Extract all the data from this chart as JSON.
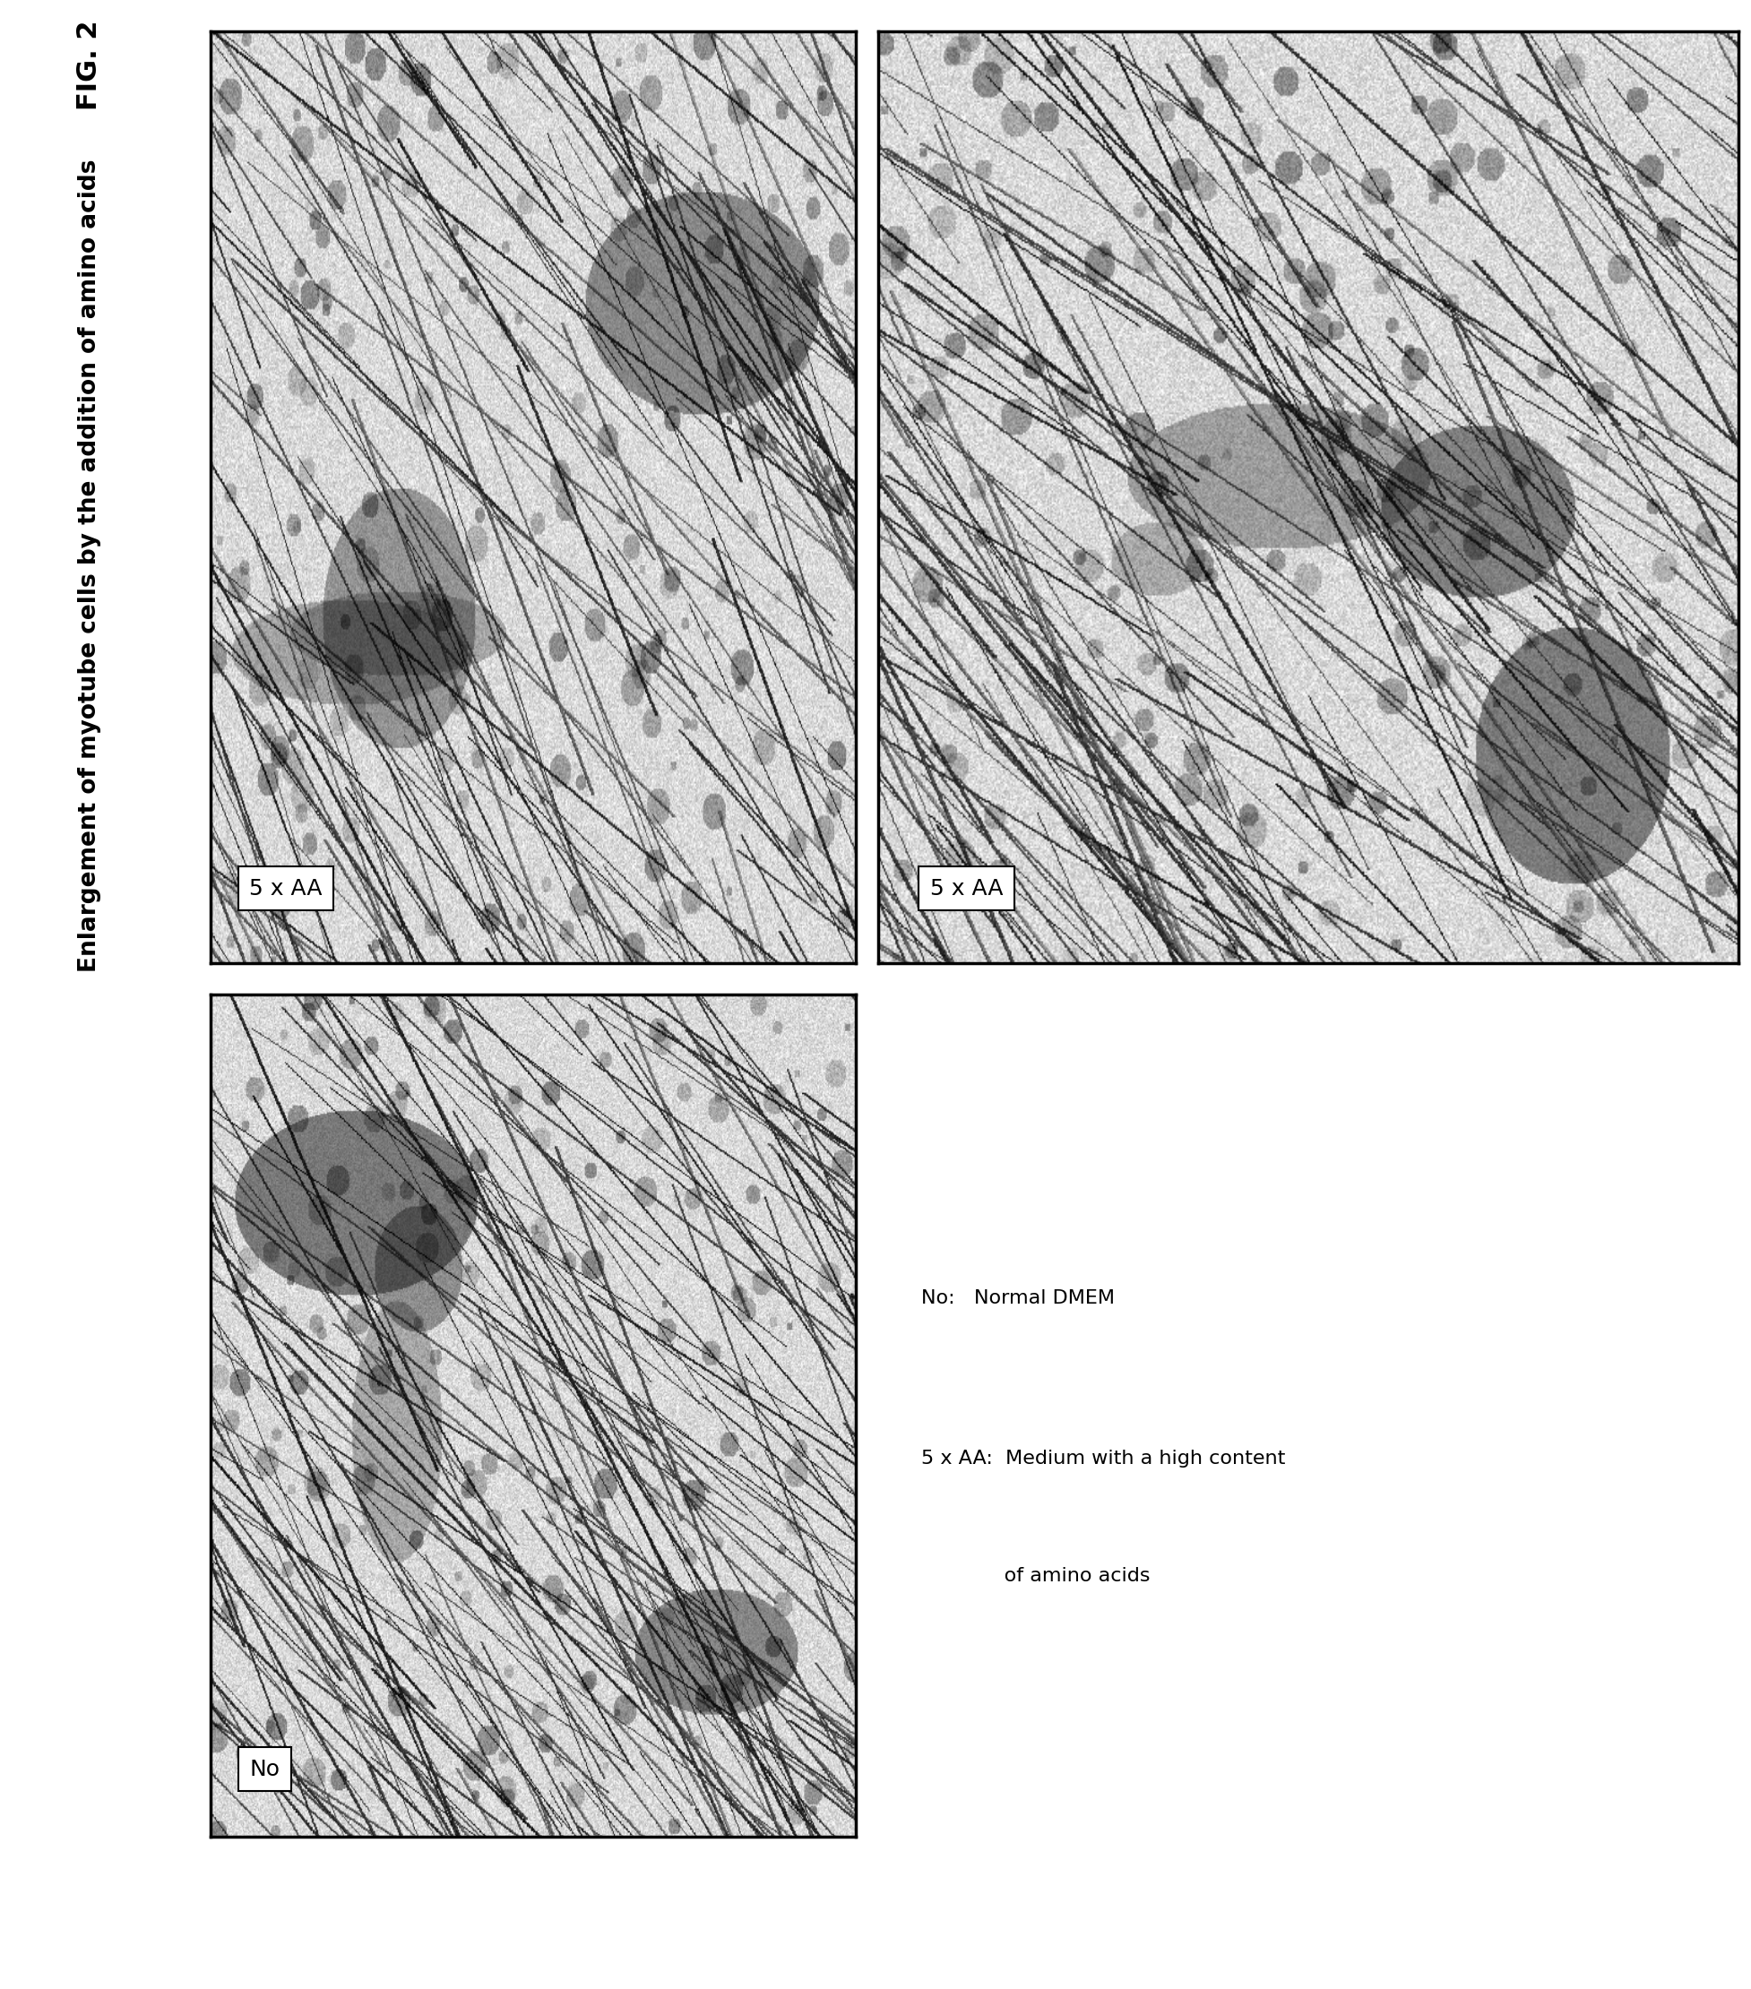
{
  "fig_label": "FIG. 2",
  "title": "Enlargement of myotube cells by the addition of amino acids",
  "panel_labels": [
    "5 x AA",
    "5 x AA",
    "No"
  ],
  "legend_line1": "No:   Normal DMEM",
  "legend_line2": "5 x AA:  Medium with a high content",
  "legend_line3": "             of amino acids",
  "background_color": "#ffffff",
  "panel_border_color": "#000000",
  "label_box_color": "#ffffff",
  "text_color": "#000000",
  "fig_label_fontsize": 22,
  "title_fontsize": 19,
  "panel_label_fontsize": 18,
  "legend_fontsize": 16
}
